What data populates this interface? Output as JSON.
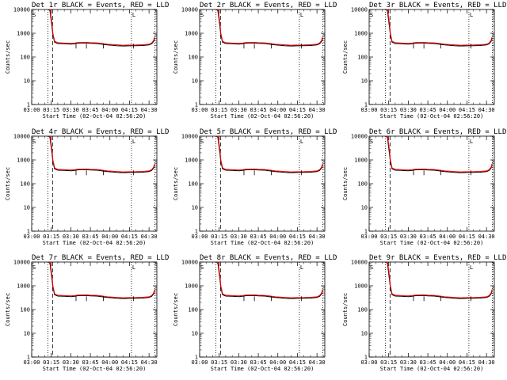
{
  "chart_data": [
    {
      "type": "line",
      "title": "Det 1r BLACK = Events, RED = LLD"
    },
    {
      "type": "line",
      "title": "Det 2r BLACK = Events, RED = LLD"
    },
    {
      "type": "line",
      "title": "Det 3r BLACK = Events, RED = LLD"
    },
    {
      "type": "line",
      "title": "Det 4r BLACK = Events, RED = LLD"
    },
    {
      "type": "line",
      "title": "Det 5r BLACK = Events, RED = LLD"
    },
    {
      "type": "line",
      "title": "Det 6r BLACK = Events, RED = LLD"
    },
    {
      "type": "line",
      "title": "Det 7r BLACK = Events, RED = LLD"
    },
    {
      "type": "line",
      "title": "Det 8r BLACK = Events, RED = LLD"
    },
    {
      "type": "line",
      "title": "Det 9r BLACK = Events, RED = LLD"
    }
  ],
  "shared": {
    "xlabel": "Start Time (02-Oct-04 02:56:20)",
    "ylabel": "Counts/sec",
    "x_ticks": [
      "03:00",
      "03:15",
      "03:30",
      "03:45",
      "04:00",
      "04:15",
      "04:30"
    ],
    "x_tick_minutes": [
      180,
      195,
      210,
      225,
      240,
      255,
      270
    ],
    "xlim_minutes": [
      180,
      276
    ],
    "y_ticks": [
      "1",
      "10",
      "100",
      "1000",
      "10000"
    ],
    "y_tick_values": [
      1,
      10,
      100,
      1000,
      10000
    ],
    "ylim": [
      1,
      10000
    ],
    "y_scale": "log",
    "corner_markers": [
      "S",
      "L"
    ],
    "vlines": [
      {
        "minute": 192.5,
        "style": "dotted"
      },
      {
        "minute": 196,
        "style": "dashed"
      },
      {
        "minute": 256.5,
        "style": "dotted"
      },
      {
        "minute": 274.5,
        "style": "dotted"
      }
    ],
    "series": [
      {
        "name": "Events",
        "color": "#000000",
        "points": [
          [
            192.5,
            10000
          ],
          [
            194,
            9000
          ],
          [
            195.5,
            2000
          ],
          [
            196.2,
            900
          ],
          [
            197.5,
            420
          ],
          [
            200,
            370
          ],
          [
            205,
            360
          ],
          [
            210,
            350
          ],
          [
            213,
            360
          ],
          [
            215,
            380
          ],
          [
            218,
            385
          ],
          [
            222,
            390
          ],
          [
            225,
            375
          ],
          [
            230,
            370
          ],
          [
            235,
            340
          ],
          [
            238,
            320
          ],
          [
            242,
            310
          ],
          [
            245,
            300
          ],
          [
            250,
            290
          ],
          [
            255,
            295
          ],
          [
            260,
            300
          ],
          [
            265,
            305
          ],
          [
            270,
            320
          ],
          [
            272,
            360
          ],
          [
            273.5,
            450
          ],
          [
            274.3,
            600
          ]
        ]
      },
      {
        "name": "LLD",
        "color": "#ff0000",
        "points": [
          [
            192.5,
            10000
          ],
          [
            194.2,
            9500
          ],
          [
            195.7,
            2300
          ],
          [
            196.3,
            1000
          ],
          [
            197.6,
            460
          ],
          [
            200,
            400
          ],
          [
            205,
            385
          ],
          [
            210,
            375
          ],
          [
            213,
            385
          ],
          [
            215,
            405
          ],
          [
            218,
            410
          ],
          [
            222,
            415
          ],
          [
            225,
            400
          ],
          [
            230,
            395
          ],
          [
            235,
            365
          ],
          [
            238,
            345
          ],
          [
            242,
            335
          ],
          [
            245,
            325
          ],
          [
            250,
            315
          ],
          [
            255,
            318
          ],
          [
            260,
            322
          ],
          [
            265,
            328
          ],
          [
            270,
            345
          ],
          [
            272,
            390
          ],
          [
            273.5,
            500
          ],
          [
            274.3,
            700
          ]
        ]
      }
    ]
  }
}
